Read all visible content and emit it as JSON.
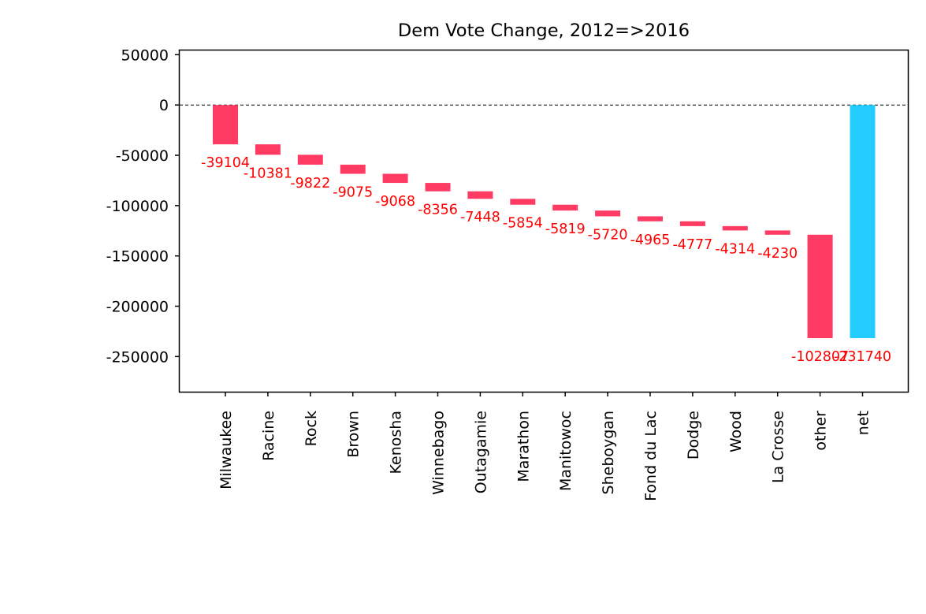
{
  "chart_data": {
    "type": "bar",
    "subtype": "waterfall",
    "title": "Dem Vote Change, 2012=>2016",
    "xlabel": "",
    "ylabel": "",
    "ylim": [
      -285000,
      55000
    ],
    "yticks": [
      50000,
      0,
      -50000,
      -100000,
      -150000,
      -200000,
      -250000
    ],
    "ytick_labels": [
      "50000",
      "0",
      "-50000",
      "-100000",
      "-150000",
      "-200000",
      "-250000"
    ],
    "zero_line": "dashed",
    "grid": false,
    "legend": "none",
    "categories": [
      "Milwaukee",
      "Racine",
      "Rock",
      "Brown",
      "Kenosha",
      "Winnebago",
      "Outagamie",
      "Marathon",
      "Manitowoc",
      "Sheboygan",
      "Fond du Lac",
      "Dodge",
      "Wood",
      "La Crosse",
      "other",
      "net"
    ],
    "values": [
      -39104,
      -10381,
      -9822,
      -9075,
      -9068,
      -8356,
      -7448,
      -5854,
      -5819,
      -5720,
      -4965,
      -4777,
      -4314,
      -4230,
      -102807,
      -231740
    ],
    "value_labels": [
      "-39104",
      "-10381",
      "-9822",
      "-9075",
      "-9068",
      "-8356",
      "-7448",
      "-5854",
      "-5819",
      "-5720",
      "-4965",
      "-4777",
      "-4314",
      "-4230",
      "-102807",
      "-231740"
    ],
    "colors": {
      "decrease": "#ff3b64",
      "net": "#22ccff",
      "label": "#ff0000",
      "axis": "#000000"
    }
  }
}
